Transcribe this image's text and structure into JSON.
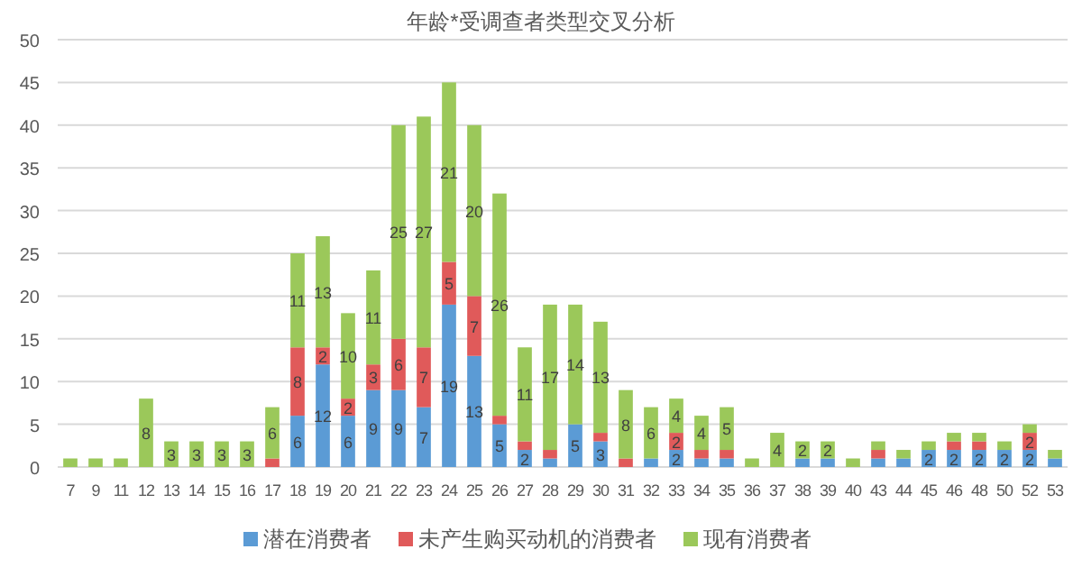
{
  "chart_data": {
    "type": "bar",
    "stacked": true,
    "title": "年龄*受调查者类型交叉分析",
    "categories": [
      "7",
      "9",
      "11",
      "12",
      "13",
      "14",
      "15",
      "16",
      "17",
      "18",
      "19",
      "20",
      "21",
      "22",
      "23",
      "24",
      "25",
      "26",
      "27",
      "28",
      "29",
      "30",
      "31",
      "32",
      "33",
      "34",
      "35",
      "36",
      "37",
      "38",
      "39",
      "40",
      "43",
      "44",
      "45",
      "46",
      "48",
      "50",
      "52",
      "53"
    ],
    "series": [
      {
        "name": "潜在消费者",
        "color": "#5b9bd5",
        "values": [
          0,
          0,
          0,
          0,
          0,
          0,
          0,
          0,
          0,
          6,
          12,
          6,
          9,
          9,
          7,
          19,
          13,
          5,
          2,
          1,
          5,
          3,
          0,
          1,
          2,
          1,
          1,
          0,
          0,
          1,
          1,
          0,
          1,
          1,
          2,
          2,
          2,
          2,
          2,
          1
        ],
        "value_labels": [
          null,
          null,
          null,
          null,
          null,
          null,
          null,
          null,
          null,
          "6",
          "12",
          "6",
          "9",
          "9",
          "7",
          "19",
          "13",
          "5",
          "2",
          null,
          "5",
          "3",
          null,
          null,
          "2",
          null,
          null,
          null,
          null,
          null,
          null,
          null,
          null,
          null,
          "2",
          "2",
          "2",
          "2",
          "2",
          null
        ]
      },
      {
        "name": "未产生购买动机的消费者",
        "color": "#e05a5a",
        "values": [
          0,
          0,
          0,
          0,
          0,
          0,
          0,
          0,
          1,
          8,
          2,
          2,
          3,
          6,
          7,
          5,
          7,
          1,
          1,
          1,
          0,
          1,
          1,
          0,
          2,
          1,
          1,
          0,
          0,
          0,
          0,
          0,
          1,
          0,
          0,
          1,
          1,
          0,
          2,
          0
        ],
        "value_labels": [
          null,
          null,
          null,
          null,
          null,
          null,
          null,
          null,
          null,
          "8",
          "2",
          "2",
          "3",
          "6",
          "7",
          "5",
          "7",
          null,
          null,
          null,
          null,
          null,
          null,
          null,
          "2",
          null,
          null,
          null,
          null,
          null,
          null,
          null,
          null,
          null,
          null,
          null,
          null,
          null,
          "2",
          null
        ]
      },
      {
        "name": "现有消费者",
        "color": "#9bc85a",
        "values": [
          1,
          1,
          1,
          8,
          3,
          3,
          3,
          3,
          6,
          11,
          13,
          10,
          11,
          25,
          27,
          21,
          20,
          26,
          11,
          17,
          14,
          13,
          8,
          6,
          4,
          4,
          5,
          1,
          4,
          2,
          2,
          1,
          1,
          1,
          1,
          1,
          1,
          1,
          1,
          1
        ],
        "value_labels": [
          null,
          null,
          null,
          "8",
          "3",
          "3",
          "3",
          "3",
          "6",
          "11",
          "13",
          "10",
          "11",
          "25",
          "27",
          "21",
          "20",
          "26",
          "11",
          "17",
          "14",
          "13",
          "8",
          "6",
          "4",
          "4",
          "5",
          null,
          "4",
          "2",
          "2",
          null,
          null,
          null,
          null,
          null,
          null,
          null,
          null,
          null
        ]
      }
    ],
    "ylim": [
      0,
      50
    ],
    "yticks": [
      0,
      5,
      10,
      15,
      20,
      25,
      30,
      35,
      40,
      45,
      50
    ],
    "grid": "y",
    "legend": "bottom"
  }
}
